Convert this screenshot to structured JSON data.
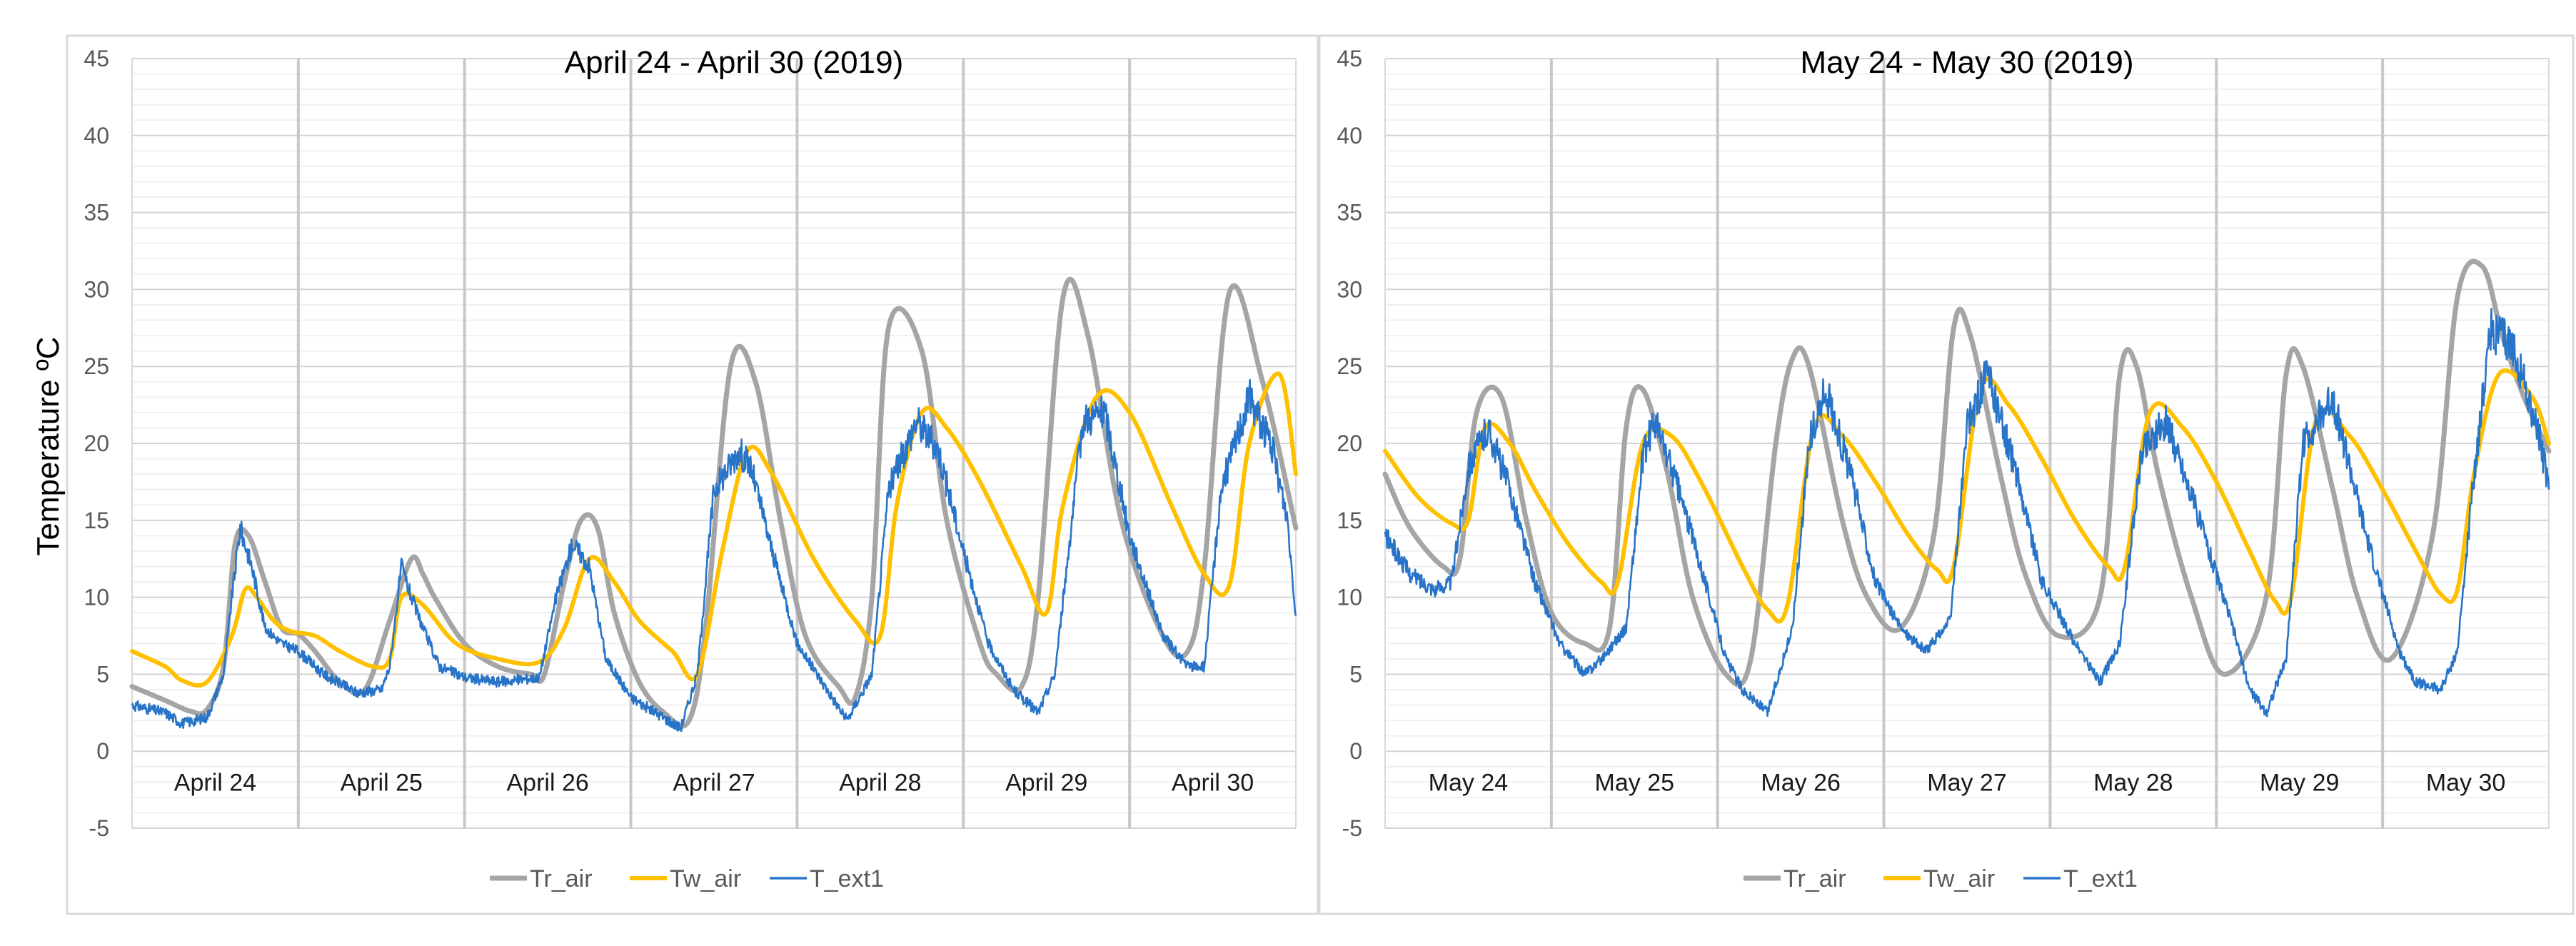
{
  "figure": {
    "ylabel": "Temperature ºC"
  },
  "chart_data": [
    {
      "type": "line",
      "title": "April 24 - April 30 (2019)",
      "xlabel": "",
      "ylabel": "Temperature ºC",
      "ylim": [
        -5,
        45
      ],
      "yticks": [
        -5,
        0,
        5,
        10,
        15,
        20,
        25,
        30,
        35,
        40,
        45
      ],
      "grid": true,
      "legend": "bottom-center",
      "x_unit": "days since April 24 00:00",
      "xlim": [
        0,
        7
      ],
      "categories": [
        "April 24",
        "April 25",
        "April 26",
        "April 27",
        "April 28",
        "April 29",
        "April 30"
      ],
      "series": [
        {
          "name": "Tr_air",
          "color": "#a5a5a5",
          "x": [
            0,
            0.2,
            0.35,
            0.45,
            0.55,
            0.62,
            0.7,
            0.8,
            0.9,
            1.0,
            1.1,
            1.25,
            1.4,
            1.55,
            1.68,
            1.75,
            1.82,
            2.0,
            2.2,
            2.4,
            2.48,
            2.6,
            2.7,
            2.8,
            2.9,
            3.05,
            3.2,
            3.35,
            3.45,
            3.6,
            3.75,
            3.9,
            4.05,
            4.25,
            4.35,
            4.45,
            4.55,
            4.75,
            4.9,
            5.1,
            5.2,
            5.35,
            5.45,
            5.6,
            5.75,
            5.95,
            6.2,
            6.35,
            6.45,
            6.6,
            6.8,
            7.0
          ],
          "values": [
            4.2,
            3.3,
            2.6,
            2.7,
            5.5,
            13.5,
            14.0,
            11.0,
            8.0,
            7.6,
            6.5,
            4.5,
            4.0,
            8.5,
            12.5,
            11.5,
            10.0,
            7.0,
            5.5,
            5.0,
            5.0,
            11.0,
            15.0,
            14.5,
            9.0,
            4.5,
            2.5,
            2.0,
            8.0,
            25.0,
            24.0,
            15.0,
            7.5,
            4.2,
            3.5,
            10.0,
            27.5,
            26.0,
            15.0,
            7.0,
            5.0,
            4.2,
            10.0,
            29.5,
            27.0,
            15.0,
            7.5,
            6.5,
            12.0,
            29.8,
            24.0,
            14.5
          ]
        },
        {
          "name": "Tw_air",
          "color": "#ffc000",
          "x": [
            0,
            0.2,
            0.3,
            0.45,
            0.6,
            0.68,
            0.75,
            0.85,
            0.95,
            1.1,
            1.25,
            1.45,
            1.55,
            1.62,
            1.75,
            1.95,
            2.2,
            2.45,
            2.6,
            2.75,
            2.9,
            3.05,
            3.25,
            3.4,
            3.55,
            3.7,
            3.85,
            4.1,
            4.35,
            4.5,
            4.6,
            4.75,
            4.9,
            5.1,
            5.35,
            5.5,
            5.6,
            5.8,
            6.0,
            6.25,
            6.45,
            6.6,
            6.72,
            6.9,
            7.0
          ],
          "values": [
            6.5,
            5.5,
            4.6,
            4.5,
            7.5,
            10.5,
            10.0,
            8.5,
            7.8,
            7.5,
            6.5,
            5.5,
            6.0,
            10.0,
            9.5,
            7.0,
            6.0,
            5.8,
            8.0,
            12.5,
            11.0,
            8.5,
            6.5,
            5.0,
            13.0,
            19.5,
            18.0,
            12.5,
            8.5,
            7.5,
            16.0,
            22.0,
            21.0,
            17.5,
            12.0,
            9.0,
            16.0,
            23.0,
            22.0,
            16.0,
            11.5,
            10.8,
            20.0,
            24.5,
            18.0
          ]
        },
        {
          "name": "T_ext1",
          "color": "#2874c8",
          "x": [
            0,
            0.2,
            0.3,
            0.45,
            0.55,
            0.6,
            0.65,
            0.72,
            0.8,
            0.9,
            1.0,
            1.15,
            1.35,
            1.5,
            1.55,
            1.62,
            1.68,
            1.75,
            1.85,
            2.0,
            2.2,
            2.45,
            2.55,
            2.65,
            2.75,
            2.85,
            3.0,
            3.15,
            3.3,
            3.4,
            3.5,
            3.65,
            3.72,
            3.85,
            4.0,
            4.15,
            4.3,
            4.45,
            4.55,
            4.72,
            4.85,
            5.0,
            5.15,
            5.3,
            5.45,
            5.55,
            5.72,
            5.85,
            6.0,
            6.2,
            6.35,
            6.45,
            6.55,
            6.72,
            6.85,
            6.95,
            7.0
          ],
          "values": [
            3.0,
            2.5,
            1.8,
            2.2,
            5.0,
            10.0,
            14.5,
            12.0,
            8.0,
            7.0,
            6.5,
            5.0,
            3.8,
            4.0,
            5.5,
            12.0,
            10.0,
            8.0,
            5.5,
            4.8,
            4.5,
            4.8,
            10.0,
            13.5,
            12.0,
            6.0,
            3.5,
            2.5,
            1.5,
            5.0,
            17.0,
            19.5,
            18.5,
            13.0,
            7.0,
            4.5,
            2.0,
            5.0,
            17.0,
            21.5,
            19.5,
            13.0,
            7.0,
            4.0,
            2.5,
            5.0,
            21.5,
            22.0,
            14.0,
            7.5,
            5.5,
            5.5,
            17.0,
            23.0,
            20.0,
            15.0,
            8.8
          ]
        }
      ]
    },
    {
      "type": "line",
      "title": "May 24 - May 30 (2019)",
      "xlabel": "",
      "ylabel": "",
      "ylim": [
        -5,
        45
      ],
      "yticks": [
        -5,
        0,
        5,
        10,
        15,
        20,
        25,
        30,
        35,
        40,
        45
      ],
      "grid": true,
      "legend": "bottom-center",
      "x_unit": "days since May 24 00:00",
      "xlim": [
        0,
        7
      ],
      "categories": [
        "May 24",
        "May 25",
        "May 26",
        "May 27",
        "May 28",
        "May 29",
        "May 30"
      ],
      "series": [
        {
          "name": "Tr_air",
          "color": "#a5a5a5",
          "x": [
            0,
            0.15,
            0.35,
            0.45,
            0.55,
            0.7,
            0.85,
            1.0,
            1.2,
            1.35,
            1.45,
            1.55,
            1.7,
            1.85,
            2.05,
            2.2,
            2.35,
            2.45,
            2.55,
            2.75,
            2.9,
            3.1,
            3.3,
            3.42,
            3.52,
            3.7,
            3.85,
            4.05,
            4.3,
            4.42,
            4.52,
            4.65,
            4.85,
            5.05,
            5.3,
            5.42,
            5.52,
            5.7,
            5.85,
            6.05,
            6.3,
            6.45,
            6.6,
            6.72,
            6.85,
            7.0
          ],
          "values": [
            18.0,
            14.5,
            12.0,
            12.5,
            22.0,
            23.0,
            15.0,
            9.0,
            7.0,
            8.0,
            21.0,
            23.5,
            18.0,
            10.0,
            5.0,
            6.0,
            20.0,
            25.5,
            25.0,
            15.0,
            10.0,
            8.0,
            14.0,
            27.5,
            27.0,
            18.0,
            11.5,
            7.5,
            10.0,
            24.5,
            25.0,
            18.0,
            10.0,
            5.0,
            10.0,
            24.5,
            25.0,
            17.0,
            10.0,
            6.0,
            14.0,
            29.5,
            31.5,
            27.0,
            23.0,
            19.5
          ]
        },
        {
          "name": "Tw_air",
          "color": "#ffc000",
          "x": [
            0,
            0.2,
            0.4,
            0.5,
            0.6,
            0.75,
            0.9,
            1.1,
            1.3,
            1.4,
            1.55,
            1.72,
            1.9,
            2.15,
            2.3,
            2.42,
            2.58,
            2.75,
            2.95,
            3.15,
            3.32,
            3.42,
            3.58,
            3.75,
            3.95,
            4.15,
            4.35,
            4.45,
            4.6,
            4.8,
            5.0,
            5.2,
            5.35,
            5.45,
            5.6,
            5.8,
            6.0,
            6.2,
            6.35,
            6.45,
            6.55,
            6.7,
            6.9,
            7.0
          ],
          "values": [
            19.5,
            16.5,
            14.8,
            15.0,
            21.0,
            20.0,
            17.0,
            13.5,
            11.0,
            11.0,
            20.0,
            20.5,
            17.5,
            12.0,
            9.2,
            9.5,
            21.0,
            20.5,
            17.5,
            14.0,
            11.8,
            12.0,
            23.5,
            22.5,
            19.0,
            15.0,
            12.0,
            12.0,
            22.0,
            21.0,
            17.5,
            13.0,
            9.8,
            10.0,
            21.5,
            20.5,
            17.0,
            13.0,
            10.2,
            10.5,
            18.0,
            24.5,
            23.0,
            20.0
          ]
        },
        {
          "name": "T_ext1",
          "color": "#2874c8",
          "x": [
            0,
            0.15,
            0.3,
            0.4,
            0.5,
            0.62,
            0.75,
            0.9,
            1.05,
            1.2,
            1.3,
            1.45,
            1.55,
            1.62,
            1.75,
            1.9,
            2.05,
            2.15,
            2.3,
            2.45,
            2.55,
            2.65,
            2.8,
            2.95,
            3.1,
            3.25,
            3.4,
            3.5,
            3.62,
            3.8,
            3.95,
            4.15,
            4.3,
            4.42,
            4.55,
            4.7,
            4.9,
            5.1,
            5.2,
            5.3,
            5.42,
            5.52,
            5.7,
            5.9,
            6.1,
            6.2,
            6.35,
            6.45,
            6.55,
            6.65,
            6.8,
            6.95,
            7.0
          ],
          "values": [
            14.0,
            11.5,
            10.5,
            11.0,
            18.5,
            21.0,
            17.0,
            11.0,
            7.0,
            5.0,
            6.0,
            8.0,
            19.0,
            21.5,
            17.5,
            12.0,
            6.0,
            4.0,
            2.5,
            8.0,
            20.0,
            23.5,
            18.0,
            11.0,
            8.0,
            6.5,
            8.5,
            21.0,
            24.5,
            18.0,
            11.0,
            7.0,
            4.5,
            7.0,
            19.5,
            21.5,
            15.0,
            8.0,
            4.0,
            2.5,
            6.0,
            20.0,
            23.0,
            14.0,
            6.5,
            4.5,
            4.0,
            6.5,
            18.0,
            27.5,
            26.0,
            20.0,
            17.0
          ]
        }
      ]
    }
  ]
}
